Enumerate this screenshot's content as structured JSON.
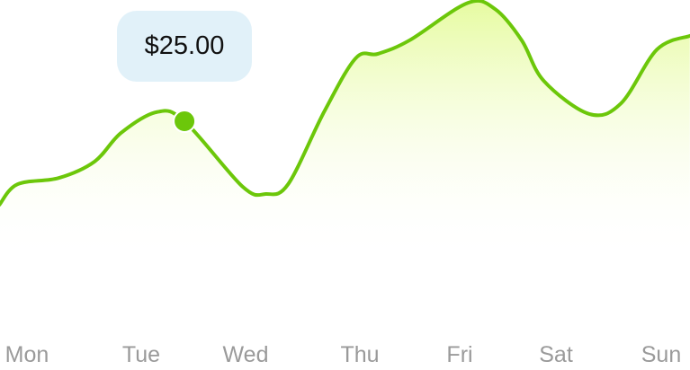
{
  "chart_data": {
    "type": "area",
    "categories": [
      "Mon",
      "Tue",
      "Wed",
      "Thu",
      "Fri",
      "Sat",
      "Sun"
    ],
    "points": [
      [
        -0.26,
        7.8
      ],
      [
        -0.09,
        12.0
      ],
      [
        0.3,
        13.3
      ],
      [
        0.64,
        16.7
      ],
      [
        0.89,
        22.6
      ],
      [
        1.23,
        26.9
      ],
      [
        1.49,
        25.0
      ],
      [
        2.04,
        11.5
      ],
      [
        2.26,
        10.0
      ],
      [
        2.47,
        12.0
      ],
      [
        2.81,
        26.9
      ],
      [
        3.11,
        38.0
      ],
      [
        3.32,
        38.9
      ],
      [
        3.62,
        41.7
      ],
      [
        4.17,
        49.4
      ],
      [
        4.43,
        48.1
      ],
      [
        4.68,
        41.7
      ],
      [
        4.89,
        33.3
      ],
      [
        5.32,
        26.5
      ],
      [
        5.62,
        28.7
      ],
      [
        5.96,
        39.8
      ],
      [
        6.27,
        42.6
      ]
    ],
    "highlight": {
      "x": 1.49,
      "y": 25.0,
      "label": "$25.00"
    },
    "grid": false,
    "line_color": "#6cc70a",
    "fill_color": "#e6fba0",
    "tooltip_bg": "#e1f1f9"
  }
}
